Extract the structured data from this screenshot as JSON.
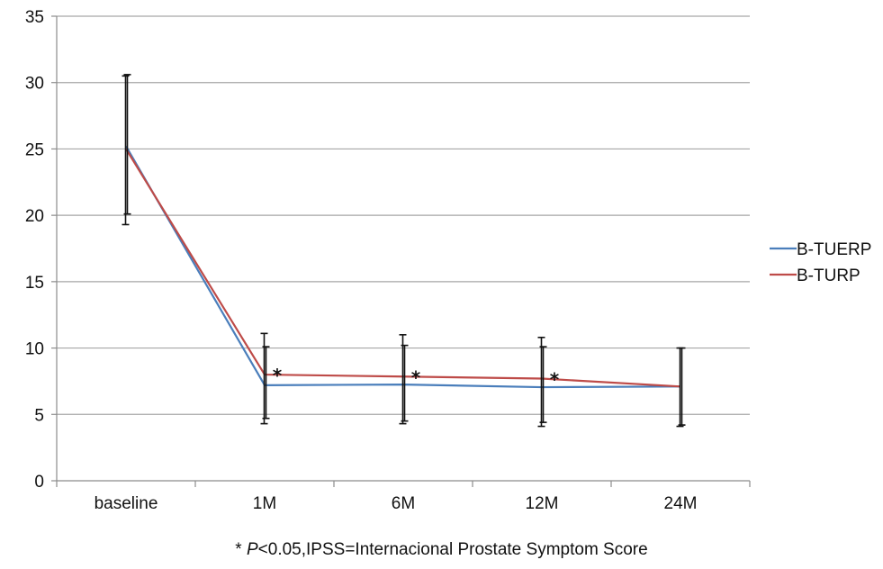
{
  "chart_data": {
    "type": "line",
    "categories": [
      "baseline",
      "1M",
      "6M",
      "12M",
      "24M"
    ],
    "y_ticks": [
      0,
      5,
      10,
      15,
      20,
      25,
      30,
      35
    ],
    "ylim": [
      0,
      35
    ],
    "grid": "horizontal",
    "legend_position": "right",
    "series": [
      {
        "name": "B-TUERP",
        "color": "#4a7ebb",
        "values": [
          25.2,
          7.2,
          7.25,
          7.05,
          7.1
        ],
        "error_low": [
          19.3,
          4.3,
          4.3,
          4.1,
          4.1
        ],
        "error_high": [
          30.5,
          11.1,
          11.0,
          10.8,
          10.0
        ]
      },
      {
        "name": "B-TURP",
        "color": "#be4b48",
        "values": [
          25.0,
          8.0,
          7.85,
          7.7,
          7.1
        ],
        "error_low": [
          20.1,
          4.7,
          4.5,
          4.4,
          4.2
        ],
        "error_high": [
          30.6,
          10.1,
          10.2,
          10.1,
          10.0
        ]
      }
    ],
    "significance_markers": [
      {
        "category": "1M",
        "label": "*"
      },
      {
        "category": "6M",
        "label": "*"
      },
      {
        "category": "12M",
        "label": "*"
      }
    ]
  },
  "footnote": {
    "star": "* ",
    "p": "P",
    "rest": "<0.05,IPSS=Internacional Prostate Symptom Score"
  }
}
